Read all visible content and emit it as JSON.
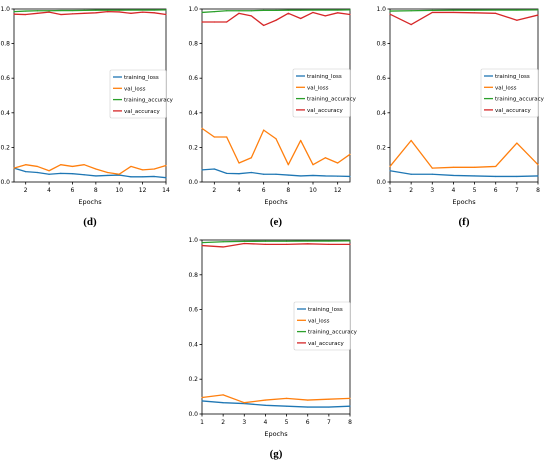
{
  "colors": {
    "training_loss": "#1f77b4",
    "val_loss": "#ff7f0e",
    "training_accuracy": "#2ca02c",
    "val_accuracy": "#d62728"
  },
  "chart_data": [
    {
      "type": "line",
      "panel_label": "(d)",
      "xlabel": "Epochs",
      "ylabel": "",
      "xlim": [
        1,
        14
      ],
      "ylim": [
        0,
        1.0
      ],
      "x_ticks": [
        2,
        4,
        6,
        8,
        10,
        12,
        14
      ],
      "y_ticks": [
        "0.0",
        "0.2",
        "0.4",
        "0.6",
        "0.8",
        "1.0"
      ],
      "legend": "right",
      "x": [
        1,
        2,
        3,
        4,
        5,
        6,
        7,
        8,
        9,
        10,
        11,
        12,
        13,
        14
      ],
      "series": [
        {
          "name": "training_loss",
          "values": [
            0.08,
            0.06,
            0.055,
            0.045,
            0.05,
            0.048,
            0.042,
            0.035,
            0.038,
            0.04,
            0.03,
            0.03,
            0.032,
            0.025
          ]
        },
        {
          "name": "val_loss",
          "values": [
            0.08,
            0.1,
            0.09,
            0.065,
            0.1,
            0.09,
            0.1,
            0.075,
            0.055,
            0.045,
            0.09,
            0.07,
            0.075,
            0.095
          ]
        },
        {
          "name": "training_accuracy",
          "values": [
            0.985,
            0.988,
            0.99,
            0.99,
            0.991,
            0.991,
            0.992,
            0.993,
            0.993,
            0.993,
            0.994,
            0.994,
            0.994,
            0.995
          ]
        },
        {
          "name": "val_accuracy",
          "values": [
            0.97,
            0.968,
            0.975,
            0.982,
            0.968,
            0.972,
            0.975,
            0.978,
            0.985,
            0.983,
            0.975,
            0.982,
            0.978,
            0.968
          ]
        }
      ]
    },
    {
      "type": "line",
      "panel_label": "(e)",
      "xlabel": "Epochs",
      "ylabel": "",
      "xlim": [
        1,
        13
      ],
      "ylim": [
        0,
        1.0
      ],
      "x_ticks": [
        2,
        4,
        6,
        8,
        10,
        12
      ],
      "y_ticks": [
        "0.0",
        "0.2",
        "0.4",
        "0.6",
        "0.8",
        "1.0"
      ],
      "legend": "right",
      "x": [
        1,
        2,
        3,
        4,
        5,
        6,
        7,
        8,
        9,
        10,
        11,
        12,
        13
      ],
      "series": [
        {
          "name": "training_loss",
          "values": [
            0.07,
            0.075,
            0.05,
            0.048,
            0.055,
            0.045,
            0.045,
            0.04,
            0.035,
            0.038,
            0.035,
            0.034,
            0.032
          ]
        },
        {
          "name": "val_loss",
          "values": [
            0.31,
            0.26,
            0.26,
            0.11,
            0.14,
            0.3,
            0.25,
            0.1,
            0.24,
            0.1,
            0.14,
            0.11,
            0.16
          ]
        },
        {
          "name": "training_accuracy",
          "values": [
            0.98,
            0.985,
            0.99,
            0.99,
            0.99,
            0.992,
            0.992,
            0.993,
            0.993,
            0.994,
            0.994,
            0.994,
            0.995
          ]
        },
        {
          "name": "val_accuracy",
          "values": [
            0.925,
            0.925,
            0.925,
            0.975,
            0.96,
            0.905,
            0.935,
            0.975,
            0.945,
            0.98,
            0.96,
            0.978,
            0.968
          ]
        }
      ]
    },
    {
      "type": "line",
      "panel_label": "(f)",
      "xlabel": "Epochs",
      "ylabel": "",
      "xlim": [
        1,
        8
      ],
      "ylim": [
        0,
        1.0
      ],
      "x_ticks": [
        1,
        2,
        3,
        4,
        5,
        6,
        7,
        8
      ],
      "y_ticks": [
        "0.0",
        "0.2",
        "0.4",
        "0.6",
        "0.8",
        "1.0"
      ],
      "legend": "right",
      "x": [
        1,
        2,
        3,
        4,
        5,
        6,
        7,
        8
      ],
      "series": [
        {
          "name": "training_loss",
          "values": [
            0.065,
            0.045,
            0.045,
            0.038,
            0.035,
            0.032,
            0.032,
            0.035
          ]
        },
        {
          "name": "val_loss",
          "values": [
            0.09,
            0.24,
            0.08,
            0.085,
            0.085,
            0.09,
            0.225,
            0.1
          ]
        },
        {
          "name": "training_accuracy",
          "values": [
            0.988,
            0.99,
            0.992,
            0.993,
            0.993,
            0.994,
            0.994,
            0.995
          ]
        },
        {
          "name": "val_accuracy",
          "values": [
            0.97,
            0.91,
            0.98,
            0.98,
            0.978,
            0.975,
            0.935,
            0.965
          ]
        }
      ]
    },
    {
      "type": "line",
      "panel_label": "(g)",
      "xlabel": "Epochs",
      "ylabel": "",
      "xlim": [
        1,
        8
      ],
      "ylim": [
        0,
        1.0
      ],
      "x_ticks": [
        1,
        2,
        3,
        4,
        5,
        6,
        7,
        8
      ],
      "y_ticks": [
        "0.0",
        "0.2",
        "0.4",
        "0.6",
        "0.8",
        "1.0"
      ],
      "legend": "right",
      "x": [
        1,
        2,
        3,
        4,
        5,
        6,
        7,
        8
      ],
      "series": [
        {
          "name": "training_loss",
          "values": [
            0.075,
            0.065,
            0.06,
            0.05,
            0.045,
            0.04,
            0.04,
            0.045
          ]
        },
        {
          "name": "val_loss",
          "values": [
            0.095,
            0.11,
            0.065,
            0.08,
            0.09,
            0.08,
            0.085,
            0.09
          ]
        },
        {
          "name": "training_accuracy",
          "values": [
            0.985,
            0.99,
            0.992,
            0.993,
            0.993,
            0.994,
            0.994,
            0.995
          ]
        },
        {
          "name": "val_accuracy",
          "values": [
            0.968,
            0.96,
            0.98,
            0.975,
            0.975,
            0.978,
            0.975,
            0.975
          ]
        }
      ]
    }
  ]
}
